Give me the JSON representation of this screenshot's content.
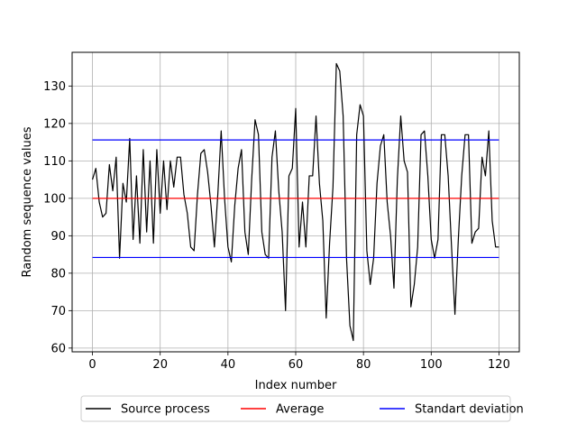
{
  "chart_data": {
    "type": "line",
    "title": "",
    "xlabel": "Index number",
    "ylabel": "Random sequence values",
    "xlim": [
      -6,
      126
    ],
    "ylim": [
      59,
      139
    ],
    "xticks": [
      0,
      20,
      40,
      60,
      80,
      100,
      120
    ],
    "yticks": [
      60,
      70,
      80,
      90,
      100,
      110,
      120,
      130
    ],
    "grid": true,
    "legend_position": "bottom-center",
    "series": [
      {
        "name": "Source process",
        "color": "#000000",
        "x": [
          0,
          1,
          2,
          3,
          4,
          5,
          6,
          7,
          8,
          9,
          10,
          11,
          12,
          13,
          14,
          15,
          16,
          17,
          18,
          19,
          20,
          21,
          22,
          23,
          24,
          25,
          26,
          27,
          28,
          29,
          30,
          31,
          32,
          33,
          34,
          35,
          36,
          37,
          38,
          39,
          40,
          41,
          42,
          43,
          44,
          45,
          46,
          47,
          48,
          49,
          50,
          51,
          52,
          53,
          54,
          55,
          56,
          57,
          58,
          59,
          60,
          61,
          62,
          63,
          64,
          65,
          66,
          67,
          68,
          69,
          70,
          71,
          72,
          73,
          74,
          75,
          76,
          77,
          78,
          79,
          80,
          81,
          82,
          83,
          84,
          85,
          86,
          87,
          88,
          89,
          90,
          91,
          92,
          93,
          94,
          95,
          96,
          97,
          98,
          99,
          100,
          101,
          102,
          103,
          104,
          105,
          106,
          107,
          108,
          109,
          110,
          111,
          112,
          113,
          114,
          115,
          116,
          117,
          118,
          119,
          120
        ],
        "values": [
          105,
          108,
          99,
          95,
          96,
          109,
          102,
          111,
          84,
          104,
          99,
          116,
          89,
          106,
          88,
          113,
          91,
          110,
          88,
          113,
          96,
          110,
          97,
          110,
          103,
          111,
          111,
          101,
          96,
          87,
          86,
          101,
          112,
          113,
          107,
          98,
          87,
          101,
          118,
          100,
          87,
          83,
          98,
          108,
          113,
          91,
          85,
          105,
          121,
          117,
          91,
          85,
          84,
          111,
          118,
          102,
          91,
          70,
          106,
          108,
          124,
          87,
          99,
          87,
          106,
          106,
          122,
          104,
          94,
          68,
          88,
          103,
          136,
          134,
          122,
          84,
          66,
          62,
          117,
          125,
          122,
          86,
          77,
          84,
          104,
          114,
          117,
          99,
          90,
          76,
          105,
          122,
          110,
          107,
          71,
          77,
          87,
          117,
          118,
          106,
          89,
          84,
          89,
          117,
          117,
          106,
          87,
          69,
          89,
          106,
          117,
          117,
          88,
          91,
          92,
          111,
          106,
          118,
          94,
          87,
          87
        ]
      },
      {
        "name": "Average",
        "color": "#ff0000",
        "x": [
          0,
          120
        ],
        "values": [
          100,
          100
        ]
      },
      {
        "name": "Standart deviation",
        "color": "#0000ff",
        "x": [
          0,
          120
        ],
        "values": [
          115.6,
          115.6
        ]
      },
      {
        "name": "",
        "color": "#0000ff",
        "x": [
          0,
          120
        ],
        "values": [
          84.2,
          84.2
        ]
      }
    ]
  }
}
